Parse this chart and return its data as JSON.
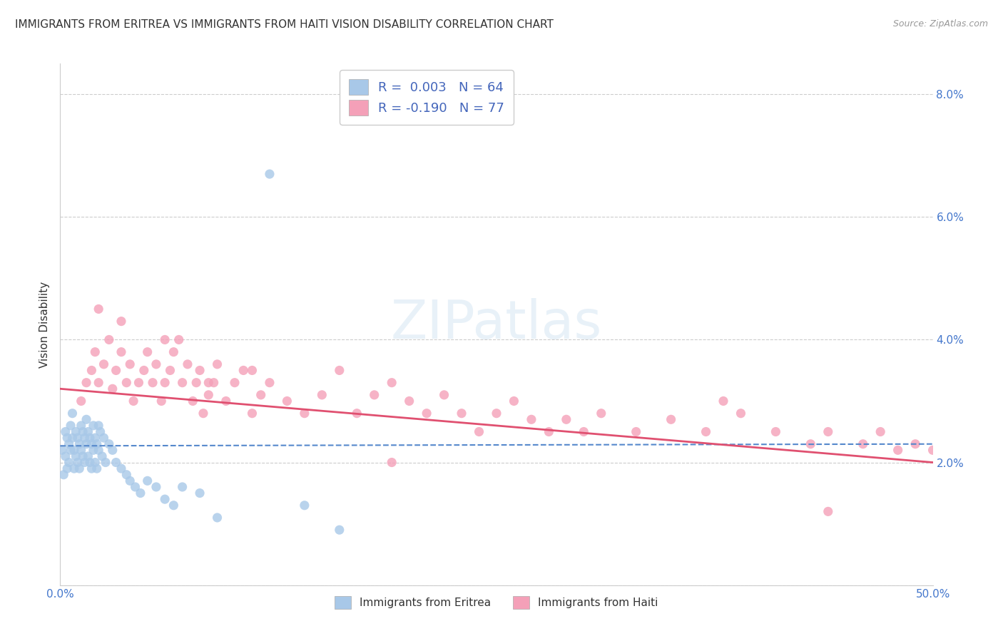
{
  "title": "IMMIGRANTS FROM ERITREA VS IMMIGRANTS FROM HAITI VISION DISABILITY CORRELATION CHART",
  "source": "Source: ZipAtlas.com",
  "ylabel": "Vision Disability",
  "xmin": 0.0,
  "xmax": 0.5,
  "ymin": 0.0,
  "ymax": 0.085,
  "yticks": [
    0.0,
    0.02,
    0.04,
    0.06,
    0.08
  ],
  "ytick_labels": [
    "",
    "2.0%",
    "4.0%",
    "6.0%",
    "8.0%"
  ],
  "xticks": [
    0.0,
    0.1,
    0.2,
    0.3,
    0.4,
    0.5
  ],
  "xtick_labels": [
    "0.0%",
    "",
    "",
    "",
    "",
    "50.0%"
  ],
  "color_eritrea": "#a8c8e8",
  "color_haiti": "#f4a0b8",
  "line_color_eritrea": "#5588cc",
  "line_color_haiti": "#e05070",
  "eritrea_x": [
    0.001,
    0.002,
    0.003,
    0.003,
    0.004,
    0.004,
    0.005,
    0.005,
    0.006,
    0.006,
    0.007,
    0.007,
    0.008,
    0.008,
    0.009,
    0.009,
    0.01,
    0.01,
    0.011,
    0.011,
    0.012,
    0.012,
    0.013,
    0.013,
    0.014,
    0.014,
    0.015,
    0.015,
    0.016,
    0.016,
    0.017,
    0.017,
    0.018,
    0.018,
    0.019,
    0.019,
    0.02,
    0.02,
    0.021,
    0.021,
    0.022,
    0.022,
    0.023,
    0.024,
    0.025,
    0.026,
    0.028,
    0.03,
    0.032,
    0.035,
    0.038,
    0.04,
    0.043,
    0.046,
    0.05,
    0.055,
    0.06,
    0.065,
    0.07,
    0.08,
    0.09,
    0.12,
    0.14,
    0.16
  ],
  "eritrea_y": [
    0.022,
    0.018,
    0.025,
    0.021,
    0.024,
    0.019,
    0.023,
    0.02,
    0.026,
    0.022,
    0.028,
    0.024,
    0.022,
    0.019,
    0.025,
    0.021,
    0.024,
    0.02,
    0.023,
    0.019,
    0.026,
    0.022,
    0.025,
    0.021,
    0.024,
    0.02,
    0.027,
    0.023,
    0.025,
    0.021,
    0.024,
    0.02,
    0.023,
    0.019,
    0.026,
    0.022,
    0.024,
    0.02,
    0.023,
    0.019,
    0.026,
    0.022,
    0.025,
    0.021,
    0.024,
    0.02,
    0.023,
    0.022,
    0.02,
    0.019,
    0.018,
    0.017,
    0.016,
    0.015,
    0.017,
    0.016,
    0.014,
    0.013,
    0.016,
    0.015,
    0.011,
    0.067,
    0.013,
    0.009
  ],
  "haiti_x": [
    0.012,
    0.015,
    0.018,
    0.02,
    0.022,
    0.025,
    0.028,
    0.03,
    0.032,
    0.035,
    0.038,
    0.04,
    0.042,
    0.045,
    0.048,
    0.05,
    0.053,
    0.055,
    0.058,
    0.06,
    0.063,
    0.065,
    0.068,
    0.07,
    0.073,
    0.076,
    0.078,
    0.08,
    0.082,
    0.085,
    0.088,
    0.09,
    0.095,
    0.1,
    0.105,
    0.11,
    0.115,
    0.12,
    0.13,
    0.14,
    0.15,
    0.16,
    0.17,
    0.18,
    0.19,
    0.2,
    0.21,
    0.22,
    0.23,
    0.24,
    0.25,
    0.26,
    0.27,
    0.28,
    0.29,
    0.3,
    0.31,
    0.33,
    0.35,
    0.37,
    0.38,
    0.39,
    0.41,
    0.43,
    0.44,
    0.46,
    0.47,
    0.48,
    0.49,
    0.5,
    0.022,
    0.035,
    0.06,
    0.085,
    0.11,
    0.19,
    0.44
  ],
  "haiti_y": [
    0.03,
    0.033,
    0.035,
    0.038,
    0.033,
    0.036,
    0.04,
    0.032,
    0.035,
    0.038,
    0.033,
    0.036,
    0.03,
    0.033,
    0.035,
    0.038,
    0.033,
    0.036,
    0.03,
    0.033,
    0.035,
    0.038,
    0.04,
    0.033,
    0.036,
    0.03,
    0.033,
    0.035,
    0.028,
    0.031,
    0.033,
    0.036,
    0.03,
    0.033,
    0.035,
    0.028,
    0.031,
    0.033,
    0.03,
    0.028,
    0.031,
    0.035,
    0.028,
    0.031,
    0.033,
    0.03,
    0.028,
    0.031,
    0.028,
    0.025,
    0.028,
    0.03,
    0.027,
    0.025,
    0.027,
    0.025,
    0.028,
    0.025,
    0.027,
    0.025,
    0.03,
    0.028,
    0.025,
    0.023,
    0.025,
    0.023,
    0.025,
    0.022,
    0.023,
    0.022,
    0.045,
    0.043,
    0.04,
    0.033,
    0.035,
    0.02,
    0.012
  ],
  "eritrea_line_x": [
    0.0,
    0.5
  ],
  "eritrea_line_y": [
    0.0227,
    0.023
  ],
  "haiti_line_x": [
    0.0,
    0.5
  ],
  "haiti_line_y": [
    0.032,
    0.02
  ]
}
